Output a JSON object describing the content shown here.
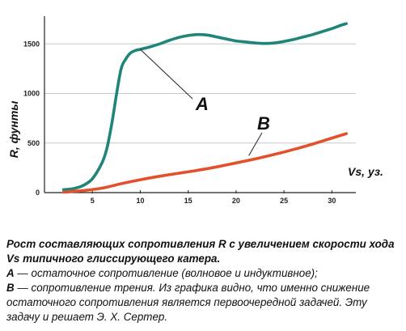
{
  "colors": {
    "series_a": "#1f8578",
    "series_b": "#e2502c",
    "grid": "#c8c8c8",
    "axis": "#222222"
  },
  "chart_data": {
    "type": "line",
    "xlabel": "Vs, уз.",
    "ylabel": "R, фунты",
    "xlim": [
      0,
      32.5
    ],
    "ylim": [
      0,
      1780
    ],
    "x_ticks": [
      5,
      10,
      15,
      20,
      25,
      30
    ],
    "y_ticks": [
      0,
      500,
      1000,
      1500
    ],
    "grid": "horizontal",
    "series": [
      {
        "name": "A",
        "color": "#1f8578",
        "x": [
          2,
          3,
          4,
          5,
          6,
          6.5,
          7,
          7.5,
          8,
          8.5,
          9,
          9.5,
          10,
          11,
          12,
          13,
          14,
          15,
          16,
          17,
          18,
          19,
          20,
          21,
          22,
          23,
          24,
          25,
          26,
          27,
          28,
          29,
          30,
          31,
          31.5
        ],
        "y": [
          30,
          40,
          70,
          140,
          300,
          440,
          680,
          980,
          1250,
          1350,
          1410,
          1435,
          1445,
          1470,
          1500,
          1535,
          1565,
          1585,
          1595,
          1590,
          1570,
          1550,
          1530,
          1520,
          1510,
          1505,
          1510,
          1525,
          1545,
          1570,
          1595,
          1625,
          1655,
          1690,
          1705
        ]
      },
      {
        "name": "B",
        "color": "#e2502c",
        "x": [
          2,
          4,
          6,
          8,
          10,
          12,
          14,
          16,
          18,
          20,
          22,
          24,
          26,
          28,
          30,
          31.5
        ],
        "y": [
          5,
          20,
          45,
          90,
          130,
          165,
          195,
          225,
          260,
          300,
          340,
          385,
          435,
          490,
          550,
          595
        ]
      }
    ],
    "annotations": [
      {
        "text": "A",
        "series": "A"
      },
      {
        "text": "B",
        "series": "B"
      }
    ]
  },
  "caption": {
    "title": "Рост составляющих сопротивления R с увеличением скорости хода Vs типичного глиссирующего катера.",
    "line_a_letter": "А",
    "line_a_text": " — остаточное сопротивление (волновое и индуктивное);",
    "line_b_letter": "В",
    "line_b_text": " — сопротивление трения. Из графика видно, что именно снижение остаточного сопротивления является первоочередной задачей. Эту задачу и решает Э. Х. Сертер."
  }
}
